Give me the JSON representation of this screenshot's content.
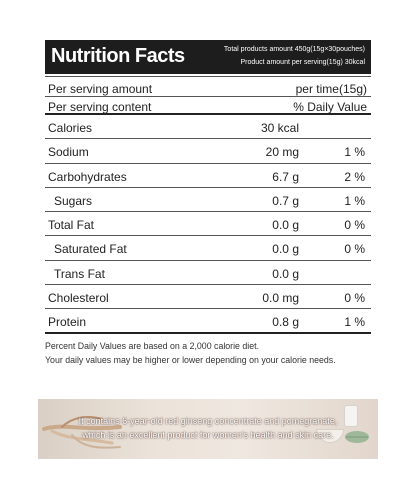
{
  "panel": {
    "title": "Nutrition Facts",
    "total_amount": "Total products amount 450g(15g×30pouches)",
    "serving_amount": "Product amount per serving(15g) 30kcal",
    "per_serving_amount_label": "Per serving amount",
    "per_serving_amount_value": "per time(15g)",
    "per_serving_content_label": "Per serving content",
    "per_serving_content_value": "% Daily Value",
    "rows": [
      {
        "name": "Calories",
        "amount": "30 kcal",
        "pct": ""
      },
      {
        "name": "Sodium",
        "amount": "20 mg",
        "pct": "1 %"
      },
      {
        "name": "Carbohydrates",
        "amount": "6.7 g",
        "pct": "2 %"
      },
      {
        "name": "Sugars",
        "amount": "0.7 g",
        "pct": "1 %"
      },
      {
        "name": "Total Fat",
        "amount": "0.0 g",
        "pct": "0 %"
      },
      {
        "name": "Saturated Fat",
        "amount": "0.0 g",
        "pct": "0 %"
      },
      {
        "name": "Trans Fat",
        "amount": "0.0 g",
        "pct": ""
      },
      {
        "name": "Cholesterol",
        "amount": "0.0 mg",
        "pct": "0 %"
      },
      {
        "name": "Protein",
        "amount": "0.8 g",
        "pct": "1 %"
      }
    ]
  },
  "footnote": {
    "line1": "Percent Daily Values are based on a 2,000 calorie diet.",
    "line2": "Your daily values may be higher or lower depending on your calorie needs."
  },
  "banner": {
    "line1": "It contains 6-year-old red ginseng concentrate and pomegranate,",
    "line2": "which is an excellent product for women's health and skin care."
  }
}
